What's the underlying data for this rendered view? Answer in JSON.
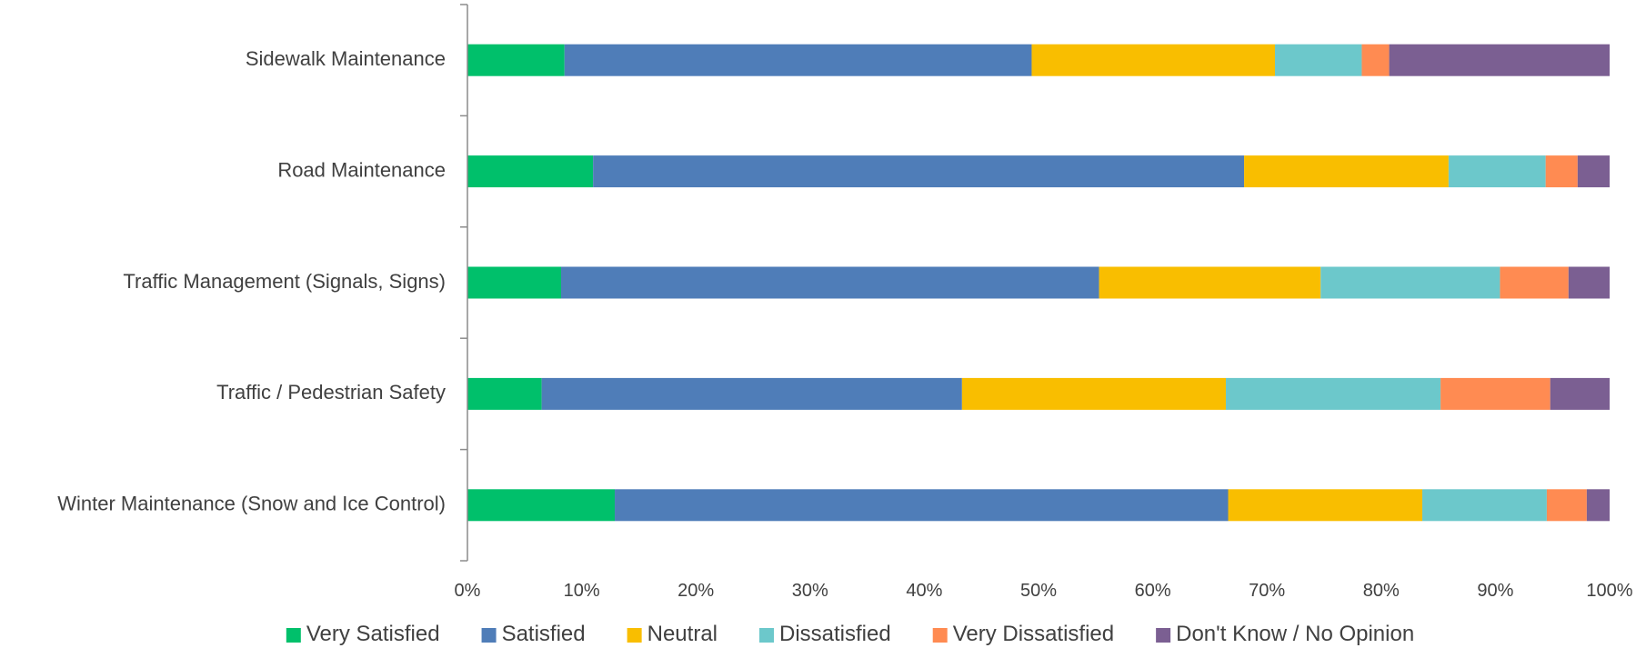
{
  "chart_data": {
    "type": "bar",
    "orientation": "horizontal",
    "stacked": "100%",
    "categories": [
      "Sidewalk Maintenance",
      "Road Maintenance",
      "Traffic Management (Signals, Signs)",
      "Traffic / Pedestrian Safety",
      "Winter Maintenance (Snow and Ice Control)"
    ],
    "series": [
      {
        "name": "Very Satisfied",
        "color": "#00C06B",
        "values": [
          8.5,
          11.0,
          8.2,
          6.5,
          12.9
        ]
      },
      {
        "name": "Satisfied",
        "color": "#4F7DB8",
        "values": [
          40.9,
          57.0,
          47.1,
          36.8,
          53.7
        ]
      },
      {
        "name": "Neutral",
        "color": "#F9BE00",
        "values": [
          21.3,
          17.9,
          19.4,
          23.1,
          17.0
        ]
      },
      {
        "name": "Dissatisfied",
        "color": "#6CC8CB",
        "values": [
          7.6,
          8.5,
          15.7,
          18.8,
          10.9
        ]
      },
      {
        "name": "Very Dissatisfied",
        "color": "#FF8B52",
        "values": [
          2.4,
          2.8,
          6.0,
          9.6,
          3.5
        ]
      },
      {
        "name": "Don't Know / No Opinion",
        "color": "#7B5F92",
        "values": [
          19.3,
          2.8,
          3.6,
          5.2,
          2.0
        ]
      }
    ],
    "x_ticks": [
      "0%",
      "10%",
      "20%",
      "30%",
      "40%",
      "50%",
      "60%",
      "70%",
      "80%",
      "90%",
      "100%"
    ],
    "xlim": [
      0,
      100
    ],
    "grid": false,
    "legend_position": "bottom",
    "title": "",
    "xlabel": "",
    "ylabel": ""
  }
}
